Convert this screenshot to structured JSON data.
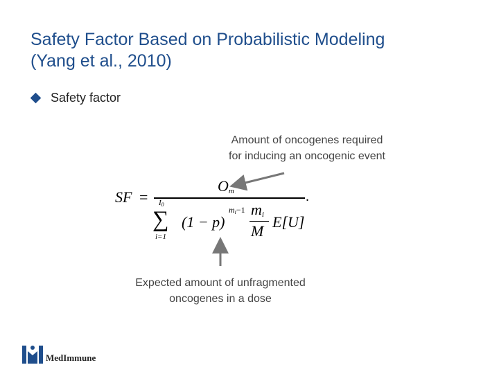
{
  "slide": {
    "title_line1": "Safety Factor Based on Probabilistic Modeling",
    "title_line2": "(Yang et al., 2010)",
    "bullet": "Safety factor",
    "annotation_top_line1": "Amount of oncogenes required",
    "annotation_top_line2": "for inducing an oncogenic event",
    "annotation_bottom_line1": "Expected amount of unfragmented",
    "annotation_bottom_line2": "oncogenes in a dose",
    "logo_text": "MedImmune",
    "accent_color": "#1f4e8c"
  },
  "formula": {
    "lhs": "SF",
    "equals": "=",
    "numerator": "O",
    "numerator_sub": "m",
    "sum": "∑",
    "sum_upper": "I",
    "sum_upper_sub": "0",
    "sum_lower": "i=1",
    "base": "(1 − p)",
    "exponent": "m",
    "exponent_sub": "i",
    "exponent_rest": "−1",
    "frac_num": "m",
    "frac_num_sub": "i",
    "frac_den": "M",
    "expect": "E[U]",
    "period": "."
  }
}
